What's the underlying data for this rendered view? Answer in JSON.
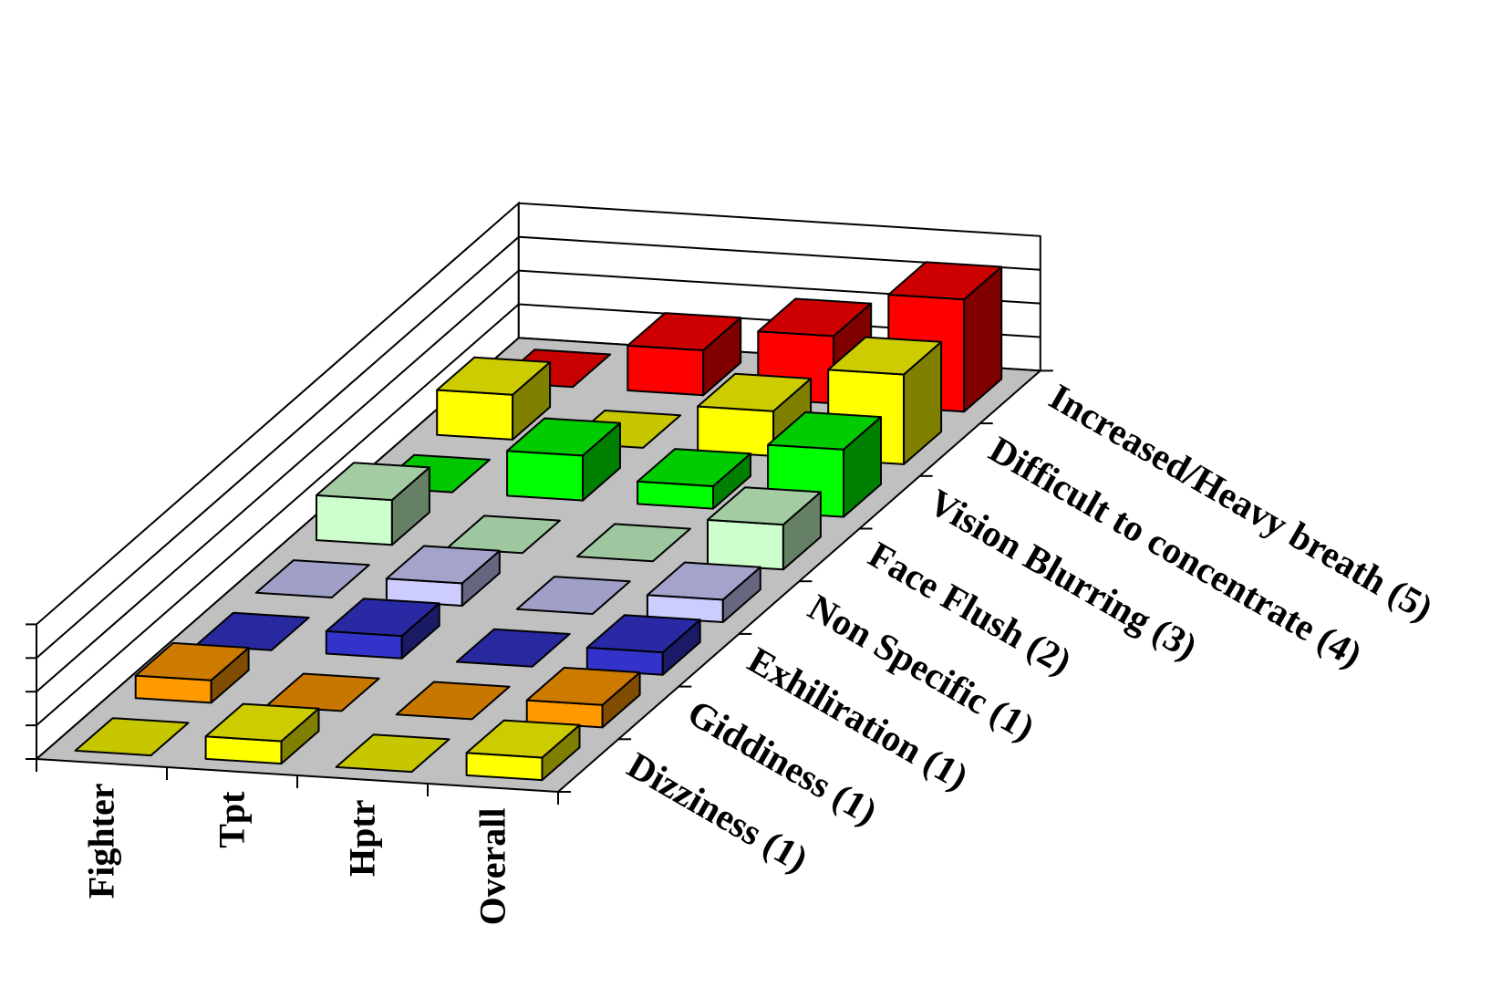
{
  "chart_data": {
    "type": "bar",
    "subtype": "3d-column",
    "categories": [
      "Fighter",
      "Tpt",
      "Hptr",
      "Overall"
    ],
    "series": [
      {
        "name": "Dizziness (1)",
        "values": [
          0,
          2,
          0,
          2
        ],
        "color": "#ffff00"
      },
      {
        "name": "Giddiness (1)",
        "values": [
          2,
          0,
          0,
          2
        ],
        "color": "#ff9900"
      },
      {
        "name": "Exhiliration (1)",
        "values": [
          0,
          2,
          0,
          2
        ],
        "color": "#3333cc"
      },
      {
        "name": "Non Specific (1)",
        "values": [
          0,
          2,
          0,
          2
        ],
        "color": "#ccccff"
      },
      {
        "name": "Face Flush (2)",
        "values": [
          4,
          0,
          0,
          4
        ],
        "color": "#ccffcc"
      },
      {
        "name": "Vision Blurring (3)",
        "values": [
          0,
          4,
          2,
          6
        ],
        "color": "#00ff00"
      },
      {
        "name": "Difficult to concentrate (4)",
        "values": [
          4,
          0,
          4,
          8
        ],
        "color": "#ffff00"
      },
      {
        "name": "Increased/Heavy breath (5)",
        "values": [
          0,
          4,
          6,
          10
        ],
        "color": "#ff0000"
      }
    ],
    "xlabel": "",
    "ylabel": "",
    "zlabel": "",
    "ylim": [
      0,
      12
    ],
    "ytick_step": 3,
    "grid": true,
    "legend": "none",
    "floor_color": "#c0c0c0"
  }
}
